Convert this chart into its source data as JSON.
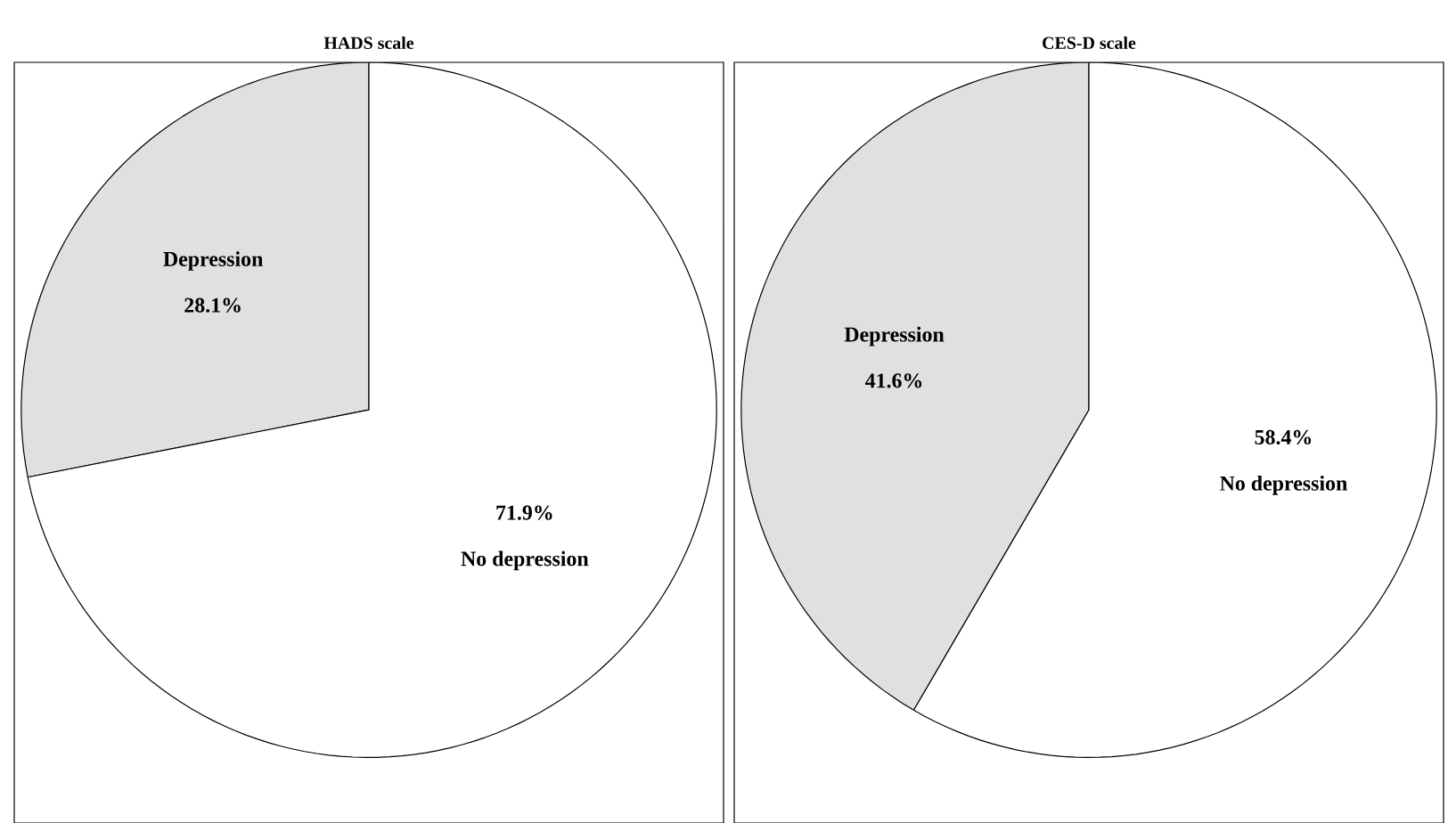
{
  "chart_data": [
    {
      "type": "pie",
      "title": "HADS scale",
      "categories": [
        "Depression",
        "No depression"
      ],
      "values": [
        28.1,
        71.9
      ],
      "colors": [
        "#e0e0e0",
        "#ffffff"
      ],
      "value_labels": [
        "28.1%",
        "71.9%"
      ]
    },
    {
      "type": "pie",
      "title": "CES-D scale",
      "categories": [
        "Depression",
        "No depression"
      ],
      "values": [
        41.6,
        58.4
      ],
      "colors": [
        "#e0e0e0",
        "#ffffff"
      ],
      "value_labels": [
        "41.6%",
        "58.4%"
      ]
    }
  ]
}
